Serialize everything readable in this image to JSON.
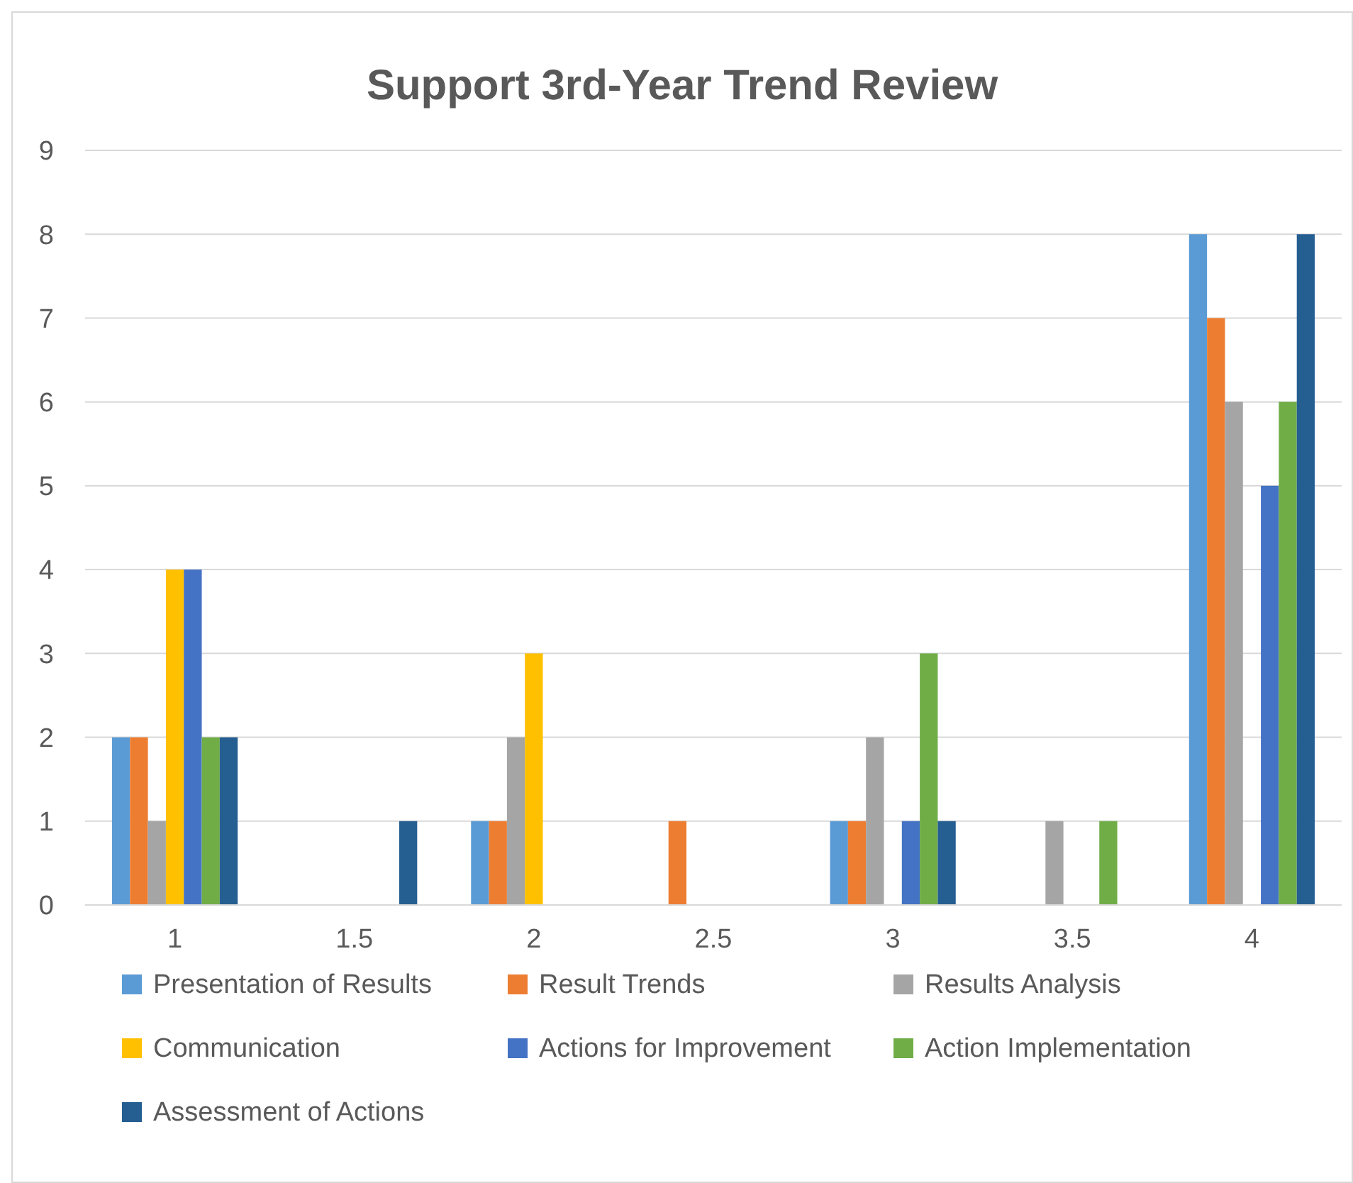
{
  "chart_data": {
    "type": "bar",
    "title": "Support 3rd-Year Trend Review",
    "categories": [
      "1",
      "1.5",
      "2",
      "2.5",
      "3",
      "3.5",
      "4"
    ],
    "series": [
      {
        "name": "Presentation of Results",
        "color": "#5b9bd5",
        "values": [
          2,
          0,
          1,
          0,
          1,
          0,
          8
        ]
      },
      {
        "name": "Result Trends",
        "color": "#ed7d31",
        "values": [
          2,
          0,
          1,
          1,
          1,
          0,
          7
        ]
      },
      {
        "name": "Results Analysis",
        "color": "#a5a5a5",
        "values": [
          1,
          0,
          2,
          0,
          2,
          1,
          6
        ]
      },
      {
        "name": "Communication",
        "color": "#ffc000",
        "values": [
          4,
          0,
          3,
          0,
          0,
          0,
          0
        ]
      },
      {
        "name": "Actions for Improvement",
        "color": "#4472c4",
        "values": [
          4,
          0,
          0,
          0,
          1,
          0,
          5
        ]
      },
      {
        "name": "Action Implementation",
        "color": "#70ad47",
        "values": [
          2,
          0,
          0,
          0,
          3,
          1,
          6
        ]
      },
      {
        "name": "Assessment of Actions",
        "color": "#255e91",
        "values": [
          2,
          1,
          0,
          0,
          1,
          0,
          8
        ]
      }
    ],
    "ylim": [
      0,
      9
    ],
    "yticks": [
      0,
      1,
      2,
      3,
      4,
      5,
      6,
      7,
      8,
      9
    ],
    "grid": "y",
    "legend": "bottom"
  }
}
